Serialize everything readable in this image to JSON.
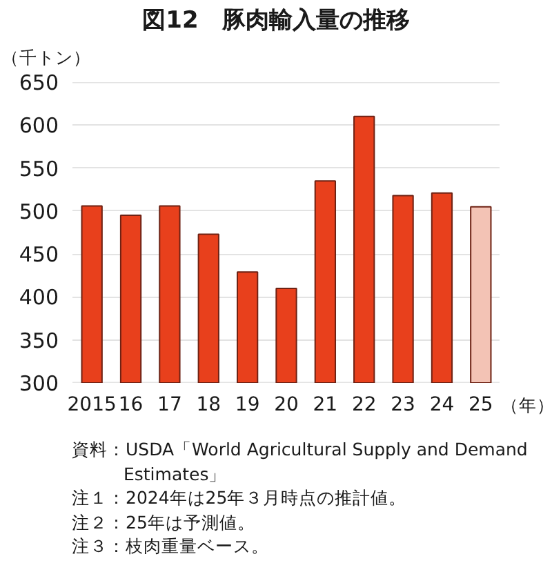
{
  "chart_data": {
    "type": "bar",
    "title": "図12　豚肉輸入量の推移",
    "ylabel": "（千トン）",
    "xlabel": "（年）",
    "categories": [
      "2015",
      "16",
      "17",
      "18",
      "19",
      "20",
      "21",
      "22",
      "23",
      "24",
      "25"
    ],
    "values": [
      506,
      495,
      506,
      473,
      429,
      410,
      535,
      610,
      518,
      521,
      505
    ],
    "colors": [
      "#e8401c",
      "#e8401c",
      "#e8401c",
      "#e8401c",
      "#e8401c",
      "#e8401c",
      "#e8401c",
      "#e8401c",
      "#e8401c",
      "#e8401c",
      "#f3c3b5"
    ],
    "ylim": [
      300,
      650
    ],
    "yticks": [
      300,
      350,
      400,
      450,
      500,
      550,
      600,
      650
    ],
    "grid": "y",
    "annotations": [
      "資料：USDA「World Agricultural Supply and Demand Estimates」",
      "注１：2024年は25年３月時点の推計値。",
      "注２：25年は予測値。",
      "注３：枝肉重量ベース。"
    ]
  }
}
